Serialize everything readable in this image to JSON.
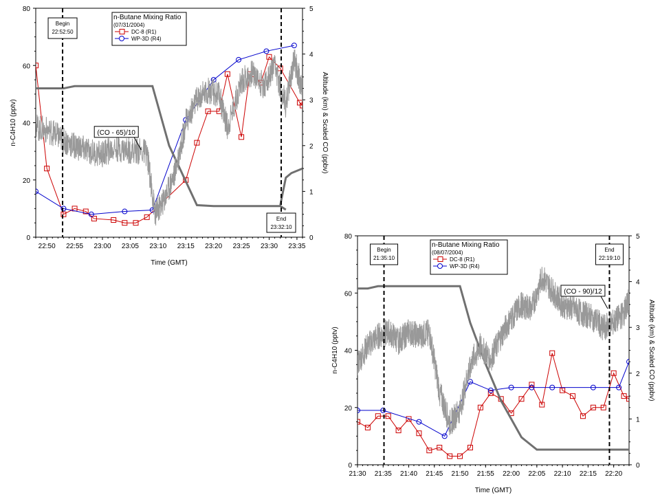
{
  "chart_data": [
    {
      "type": "line",
      "legend_title": "n-Butane Mixing Ratio",
      "legend_date": "(07/31/2004)",
      "xlabel": "Time (GMT)",
      "ylabel_left": "n-C4H10 (pptv)",
      "ylabel_right": "Altitude (km) & Scaled CO (ppbv)",
      "ylim_left": [
        0,
        80
      ],
      "ylim_right": [
        0,
        5
      ],
      "yticks_left": [
        "0",
        "20",
        "40",
        "60",
        "80"
      ],
      "yticks_right": [
        "0",
        "1",
        "2",
        "3",
        "4",
        "5"
      ],
      "xlim_minutes": [
        -12,
        36
      ],
      "xticks": [
        "22:50",
        "22:55",
        "23:00",
        "23:05",
        "23:10",
        "23:15",
        "23:20",
        "23:25",
        "23:30",
        "23:35"
      ],
      "xtick_values": [
        -10,
        -5,
        0,
        5,
        10,
        15,
        20,
        25,
        30,
        35
      ],
      "begin_label": "Begin",
      "begin_time": "22:52:50",
      "begin_x": -7.17,
      "end_label": "End",
      "end_time": "23:32:10",
      "end_x": 32.17,
      "co_annotation": "(CO - 65)/10",
      "co_annotation_at": [
        2.5,
        2.3
      ],
      "series": [
        {
          "name": "DC-8 (R1)",
          "color": "#cc0000",
          "marker": "square",
          "x": [
            -12,
            -10,
            -7,
            -5,
            -3,
            -1.5,
            2,
            4,
            6,
            8,
            15,
            17,
            19,
            21,
            22.5,
            25,
            26.5,
            28.5,
            30,
            32,
            35.5,
            36
          ],
          "y": [
            60,
            24,
            8,
            10,
            9,
            6.5,
            6,
            5,
            5,
            7,
            20,
            33,
            44,
            44,
            57,
            35,
            57,
            54,
            63,
            59,
            47,
            46
          ]
        },
        {
          "name": "WP-3D (R4)",
          "color": "#0000cc",
          "marker": "circle",
          "x": [
            -12,
            -7,
            -2,
            4,
            9,
            15,
            20,
            24.5,
            29.5,
            34.5
          ],
          "y": [
            16,
            10,
            8,
            9,
            9.5,
            41,
            55,
            62,
            65,
            67
          ]
        },
        {
          "name": "Altitude",
          "color": "#707070",
          "unit": "km",
          "x": [
            -12,
            -9,
            -7,
            -5,
            0,
            5,
            8,
            9,
            12,
            17,
            20,
            25,
            30,
            32,
            33
          ],
          "y": [
            3.25,
            3.25,
            3.25,
            3.3,
            3.3,
            3.3,
            3.3,
            3.3,
            2.0,
            0.7,
            0.68,
            0.68,
            0.68,
            0.68,
            0.6
          ]
        },
        {
          "name": "(CO - 65)/10",
          "color": "#999999",
          "x": [
            -12,
            -9,
            -7,
            -5,
            -3,
            0,
            2,
            5,
            8,
            9.5,
            11,
            13,
            15,
            17,
            19,
            21,
            22.5,
            25,
            27,
            29,
            31,
            33,
            34.5,
            36
          ],
          "y": [
            2.4,
            2.3,
            2.1,
            2.0,
            1.9,
            1.8,
            1.95,
            1.9,
            1.85,
            0.5,
            0.8,
            1.4,
            2.5,
            3.0,
            3.2,
            3.1,
            2.4,
            3.4,
            3.6,
            3.3,
            3.7,
            2.9,
            3.9,
            3.2
          ]
        },
        {
          "name": "Altitude end segment",
          "color": "#707070",
          "x": [
            32,
            33,
            34,
            36
          ],
          "y": [
            0.7,
            1.3,
            1.4,
            1.5
          ]
        }
      ]
    },
    {
      "type": "line",
      "legend_title": "n-Butane Mixing Ratio",
      "legend_date": "(08/07/2004)",
      "xlabel": "Time (GMT)",
      "ylabel_left": "n-C4H10 (pptv)",
      "ylabel_right": "Altitude (km) & Scaled CO (ppbv)",
      "ylim_left": [
        0,
        80
      ],
      "ylim_right": [
        0,
        5
      ],
      "yticks_left": [
        "0",
        "20",
        "40",
        "60",
        "80"
      ],
      "yticks_right": [
        "0",
        "1",
        "2",
        "3",
        "4",
        "5"
      ],
      "xlim_minutes": [
        0,
        53
      ],
      "xticks": [
        "21:30",
        "21:35",
        "21:40",
        "21:45",
        "21:50",
        "21:55",
        "22:00",
        "22:05",
        "22:10",
        "22:15",
        "22:20"
      ],
      "xtick_values": [
        0,
        5,
        10,
        15,
        20,
        25,
        30,
        35,
        40,
        45,
        50
      ],
      "begin_label": "Begin",
      "begin_time": "21:35:10",
      "begin_x": 5.17,
      "end_label": "End",
      "end_time": "22:19:10",
      "end_x": 49.17,
      "co_annotation": "(CO - 90)/12",
      "co_annotation_at": [
        44,
        3.8
      ],
      "series": [
        {
          "name": "DC-8 (R1)",
          "color": "#cc0000",
          "marker": "square",
          "x": [
            0,
            2,
            4,
            6,
            8,
            10,
            12,
            14,
            16,
            18,
            20,
            22,
            24,
            26,
            28,
            30,
            32,
            34,
            36,
            38,
            40,
            42,
            44,
            46,
            48,
            50,
            52,
            53
          ],
          "y": [
            15,
            13,
            17,
            17,
            12,
            16,
            11,
            5,
            6,
            3,
            3,
            6,
            20,
            25,
            23,
            18,
            23,
            28,
            21,
            39,
            26,
            24,
            17,
            20,
            20,
            32,
            24,
            23
          ]
        },
        {
          "name": "WP-3D (R4)",
          "color": "#0000cc",
          "marker": "circle",
          "x": [
            0,
            5,
            12,
            17,
            22,
            26,
            30,
            34,
            38,
            46,
            51,
            53
          ],
          "y": [
            19,
            19,
            15,
            10,
            29,
            26,
            27,
            27,
            27,
            27,
            27,
            36
          ]
        },
        {
          "name": "Altitude",
          "color": "#707070",
          "x": [
            0,
            2,
            4,
            5,
            10,
            15,
            20,
            22,
            25,
            28,
            32,
            35,
            40,
            45,
            50,
            53
          ],
          "y": [
            3.85,
            3.85,
            3.9,
            3.9,
            3.9,
            3.9,
            3.9,
            3.1,
            2.2,
            1.4,
            0.6,
            0.33,
            0.33,
            0.33,
            0.33,
            0.33
          ]
        },
        {
          "name": "(CO - 90)/12",
          "color": "#999999",
          "x": [
            0,
            2,
            4,
            6,
            8,
            10,
            12,
            14,
            16,
            18,
            20,
            22,
            24,
            26,
            28,
            30,
            32,
            34,
            36,
            38,
            40,
            42,
            44,
            46,
            48,
            50,
            52,
            53
          ],
          "y": [
            2.2,
            2.6,
            2.8,
            2.9,
            2.7,
            2.9,
            2.8,
            2.9,
            1.6,
            0.9,
            1.2,
            2.2,
            2.6,
            2.3,
            2.8,
            3.2,
            3.5,
            3.4,
            4.1,
            3.8,
            3.5,
            3.4,
            3.3,
            3.2,
            3.0,
            3.1,
            3.3,
            3.6
          ]
        }
      ]
    }
  ]
}
